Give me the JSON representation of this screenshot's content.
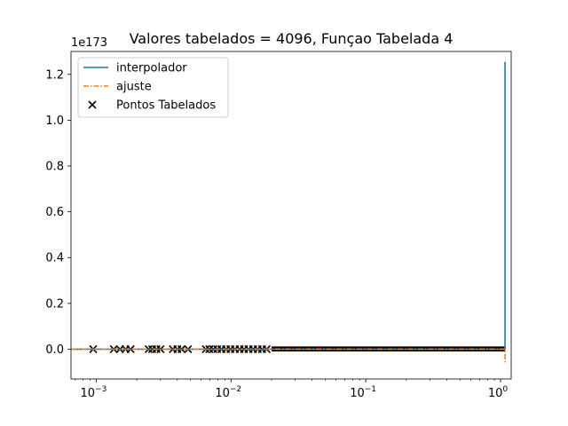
{
  "chart_data": {
    "type": "line",
    "title": "Valores tabelados = 4096, Funçao Tabelada 4",
    "xlabel": "",
    "ylabel": "",
    "xscale": "log",
    "xlim": [
      0.00065,
      1.2
    ],
    "ylim": [
      -0.13,
      1.3
    ],
    "y_offset_label": "1e173",
    "x_ticks": [
      {
        "value": 0.001,
        "base": "10",
        "exp": "−3"
      },
      {
        "value": 0.01,
        "base": "10",
        "exp": "−2"
      },
      {
        "value": 0.1,
        "base": "10",
        "exp": "−1"
      },
      {
        "value": 1,
        "base": "10",
        "exp": "0"
      }
    ],
    "y_ticks": [
      {
        "value": 0.0,
        "label": "0.0"
      },
      {
        "value": 0.2,
        "label": "0.2"
      },
      {
        "value": 0.4,
        "label": "0.4"
      },
      {
        "value": 0.6,
        "label": "0.6"
      },
      {
        "value": 0.8,
        "label": "0.8"
      },
      {
        "value": 1.0,
        "label": "1.0"
      },
      {
        "value": 1.2,
        "label": "1.2"
      }
    ],
    "grid": false,
    "legend": {
      "placement": "top-left",
      "entries": [
        {
          "label": "interpolador",
          "style": "line",
          "color": "#1f77b4"
        },
        {
          "label": "ajuste",
          "style": "dashdot",
          "color": "#ff7f0e"
        },
        {
          "label": "Pontos Tabelados",
          "style": "x-marker",
          "color": "#000000"
        }
      ]
    },
    "series": [
      {
        "name": "interpolador",
        "color": "#1f77b4",
        "x": [
          0.00065,
          0.01,
          0.1,
          1.08,
          1.08,
          1.08
        ],
        "y": [
          0.0,
          0.0,
          0.0,
          0.0,
          1.255,
          0.0
        ]
      },
      {
        "name": "ajuste",
        "color": "#ff7f0e",
        "x": [
          0.00065,
          0.01,
          0.1,
          1.08,
          1.08
        ],
        "y": [
          0.0,
          0.0,
          0.0,
          0.0,
          -0.06
        ]
      },
      {
        "name": "Pontos Tabelados",
        "color": "#000000",
        "x": [
          0.00095,
          0.00135,
          0.0015,
          0.00165,
          0.0018,
          0.00245,
          0.0026,
          0.0028,
          0.003,
          0.0037,
          0.004,
          0.0043,
          0.0048,
          0.0065,
          0.0069,
          0.0074,
          0.0079,
          0.0085,
          0.0092,
          0.0099,
          0.0107,
          0.0116,
          0.0125,
          0.0135,
          0.0146,
          0.0158,
          0.017,
          0.0184
        ],
        "y": [
          0,
          0,
          0,
          0,
          0,
          0,
          0,
          0,
          0,
          0,
          0,
          0,
          0,
          0,
          0,
          0,
          0,
          0,
          0,
          0,
          0,
          0,
          0,
          0,
          0,
          0,
          0,
          0
        ],
        "dense_band": {
          "x_from": 0.02,
          "x_to": 1.08,
          "y_from": -0.01,
          "y_to": 0.012
        }
      }
    ]
  }
}
